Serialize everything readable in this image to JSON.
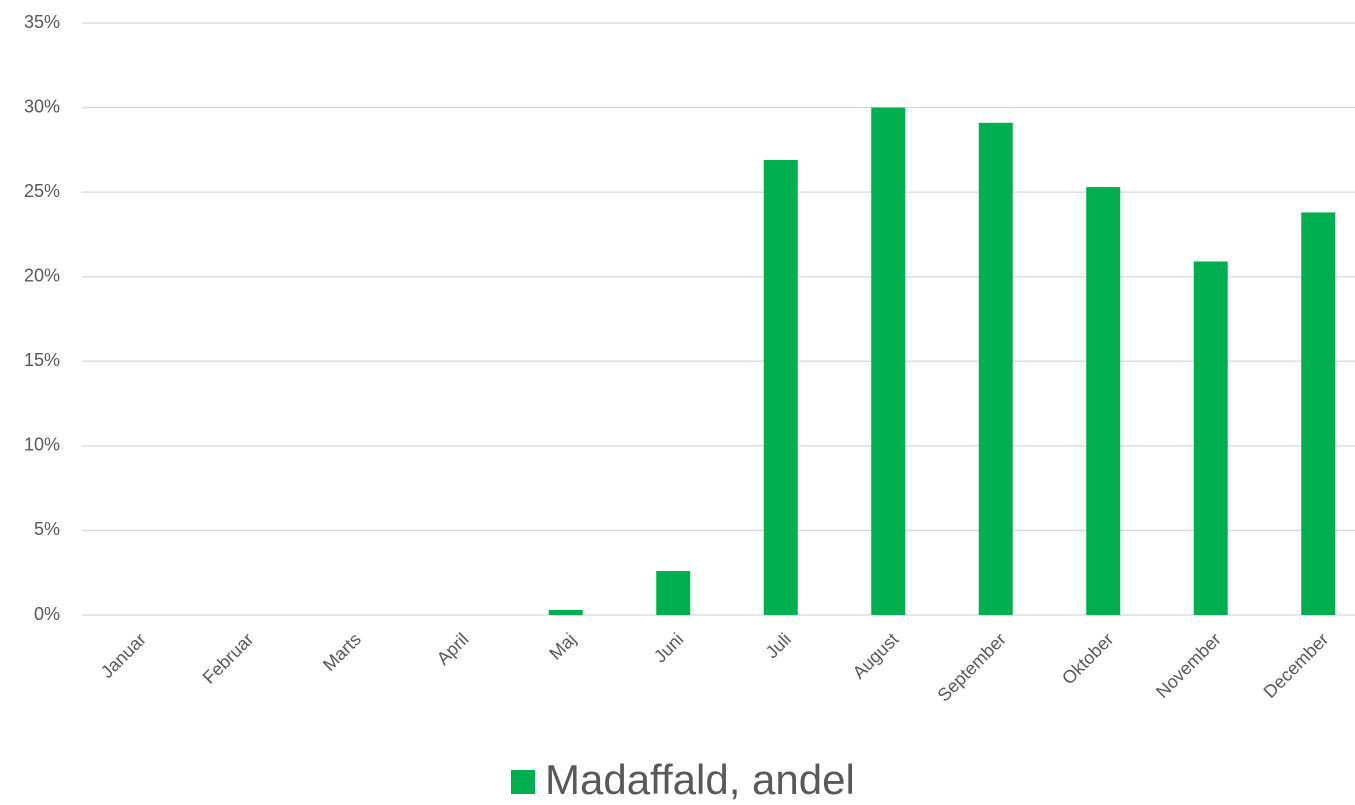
{
  "chart_data": {
    "type": "bar",
    "categories": [
      "Januar",
      "Februar",
      "Marts",
      "April",
      "Maj",
      "Juni",
      "Juli",
      "August",
      "September",
      "Oktober",
      "November",
      "December"
    ],
    "series": [
      {
        "name": "Madaffald, andel",
        "color": "#00b050",
        "values": [
          0,
          0,
          0,
          0,
          0.3,
          2.6,
          26.9,
          30.0,
          29.1,
          25.3,
          20.9,
          23.8
        ]
      }
    ],
    "ylim": [
      0,
      35
    ],
    "yticks": [
      {
        "value": 0,
        "label": "0%"
      },
      {
        "value": 5,
        "label": "5%"
      },
      {
        "value": 10,
        "label": "10%"
      },
      {
        "value": 15,
        "label": "15%"
      },
      {
        "value": 20,
        "label": "20%"
      },
      {
        "value": 25,
        "label": "25%"
      },
      {
        "value": 30,
        "label": "30%"
      },
      {
        "value": 35,
        "label": "35%"
      }
    ],
    "grid": true,
    "legend": "bottom"
  }
}
